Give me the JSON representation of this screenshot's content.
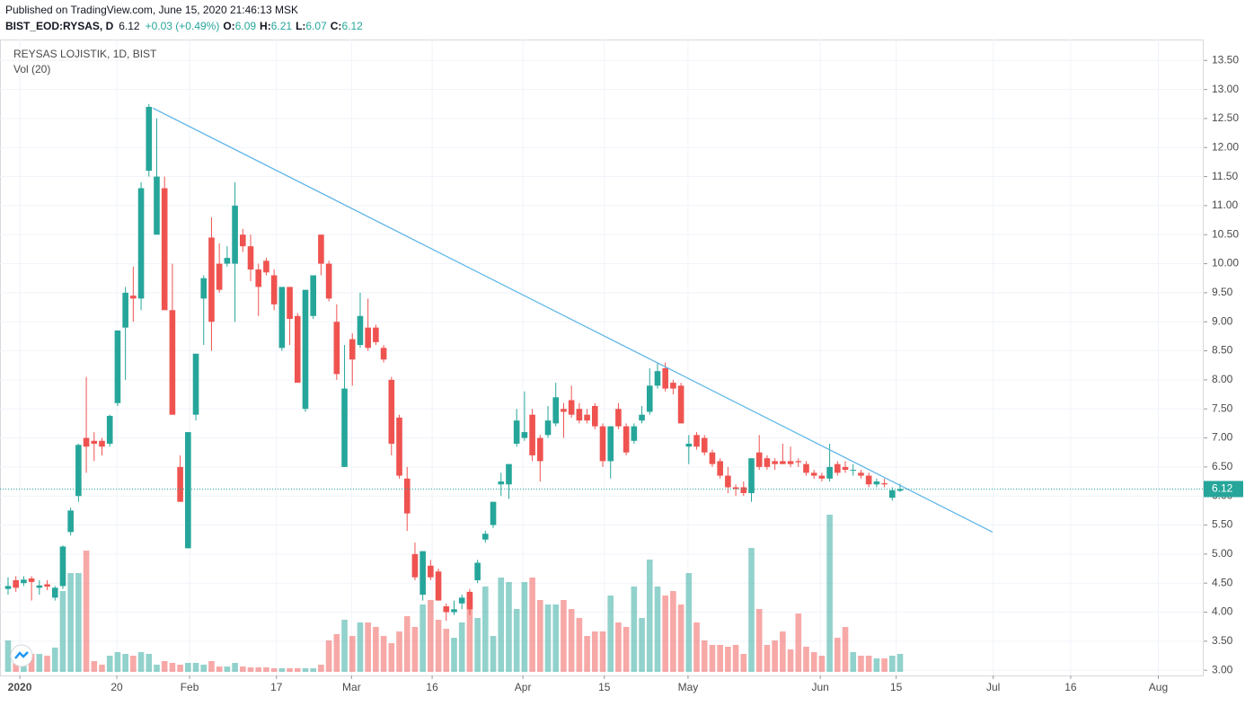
{
  "chart_data": {
    "type": "candlestick",
    "published": "Published on TradingView.com, June 15, 2020 21:46:13 MSK",
    "symbol": "BIST_EOD:RYSAS, D",
    "change": "+0.03 (+0.49%)",
    "ohlc_labels": [
      "O:",
      "H:",
      "L:",
      "C:"
    ],
    "title": "REYSAS LOJISTIK, 1D, BIST",
    "volume_label": "Vol (20)",
    "up_color": "#26a69a",
    "down_color": "#ef5350",
    "trendline_color": "#5eb5e8",
    "grid": true,
    "ylim": [
      2.91,
      13.86
    ],
    "yticks": [
      {
        "value": 3,
        "label": "3.00"
      },
      {
        "value": 3.5,
        "label": "3.50"
      },
      {
        "value": 4,
        "label": "4.00"
      },
      {
        "value": 4.5,
        "label": "4.50"
      },
      {
        "value": 5,
        "label": "5.00"
      },
      {
        "value": 5.5,
        "label": "5.50"
      },
      {
        "value": 6,
        "label": "6.00"
      },
      {
        "value": 6.5,
        "label": "6.50"
      },
      {
        "value": 7,
        "label": "7.00"
      },
      {
        "value": 7.5,
        "label": "7.50"
      },
      {
        "value": 8,
        "label": "8.00"
      },
      {
        "value": 8.5,
        "label": "8.50"
      },
      {
        "value": 9,
        "label": "9.00"
      },
      {
        "value": 9.5,
        "label": "9.50"
      },
      {
        "value": 10,
        "label": "10.00"
      },
      {
        "value": 10.5,
        "label": "10.50"
      },
      {
        "value": 11,
        "label": "11.00"
      },
      {
        "value": 11.5,
        "label": "11.50"
      },
      {
        "value": 12,
        "label": "12.00"
      },
      {
        "value": 12.5,
        "label": "12.50"
      },
      {
        "value": 13,
        "label": "13.00"
      },
      {
        "value": 13.5,
        "label": "13.50"
      }
    ],
    "xlim": [
      -1.03,
      152.8
    ],
    "xticks": [
      {
        "value": 1.5,
        "label": "2020"
      },
      {
        "value": 13.9,
        "label": "20"
      },
      {
        "value": 23.2,
        "label": "Feb"
      },
      {
        "value": 34.3,
        "label": "17"
      },
      {
        "value": 43.9,
        "label": "Mar"
      },
      {
        "value": 54.2,
        "label": "16"
      },
      {
        "value": 65.8,
        "label": "Apr"
      },
      {
        "value": 76.2,
        "label": "15"
      },
      {
        "value": 86.9,
        "label": "May"
      },
      {
        "value": 103.8,
        "label": "Jun"
      },
      {
        "value": 113.5,
        "label": "15"
      },
      {
        "value": 125.9,
        "label": "Jul"
      },
      {
        "value": 135.8,
        "label": "16"
      },
      {
        "value": 147.0,
        "label": "Aug"
      }
    ],
    "trendline": {
      "start": [
        18.5,
        12.68
      ],
      "end": [
        125.8,
        5.38
      ]
    },
    "ohlc": [
      [
        4.4,
        4.6,
        4.3,
        4.45
      ],
      [
        4.55,
        4.62,
        4.35,
        4.42
      ],
      [
        4.5,
        4.62,
        4.45,
        4.56
      ],
      [
        4.58,
        4.62,
        4.2,
        4.52
      ],
      [
        4.42,
        4.55,
        4.3,
        4.46
      ],
      [
        4.48,
        4.55,
        4.38,
        4.44
      ],
      [
        4.25,
        4.45,
        4.2,
        4.42
      ],
      [
        4.45,
        5.15,
        4.4,
        5.13
      ],
      [
        5.38,
        5.8,
        5.32,
        5.75
      ],
      [
        6.0,
        6.9,
        5.9,
        6.88
      ],
      [
        7.0,
        8.05,
        6.4,
        6.85
      ],
      [
        6.95,
        7.1,
        6.6,
        6.9
      ],
      [
        6.95,
        7.0,
        6.7,
        6.85
      ],
      [
        6.9,
        7.4,
        6.85,
        7.38
      ],
      [
        7.6,
        8.85,
        7.55,
        8.85
      ],
      [
        8.9,
        9.6,
        8.0,
        9.5
      ],
      [
        9.45,
        9.95,
        9.0,
        9.4
      ],
      [
        9.4,
        11.4,
        9.2,
        11.3
      ],
      [
        11.6,
        12.75,
        11.5,
        12.7
      ],
      [
        10.5,
        12.5,
        10.5,
        11.5
      ],
      [
        11.3,
        11.5,
        9.2,
        9.2
      ],
      [
        9.2,
        10.0,
        7.4,
        7.4
      ],
      [
        6.5,
        6.7,
        5.9,
        5.9
      ],
      [
        5.1,
        7.1,
        5.1,
        7.1
      ],
      [
        7.4,
        8.45,
        7.3,
        8.45
      ],
      [
        9.4,
        9.8,
        8.6,
        9.75
      ],
      [
        10.45,
        10.8,
        8.5,
        9.0
      ],
      [
        10.0,
        10.35,
        9.5,
        9.55
      ],
      [
        10.0,
        10.3,
        9.95,
        10.1
      ],
      [
        10.0,
        11.4,
        9.0,
        11.0
      ],
      [
        10.5,
        10.6,
        10.2,
        10.3
      ],
      [
        10.3,
        10.5,
        9.7,
        9.9
      ],
      [
        9.9,
        10.0,
        9.1,
        9.6
      ],
      [
        10.05,
        10.1,
        9.8,
        9.85
      ],
      [
        9.8,
        9.9,
        9.2,
        9.3
      ],
      [
        8.55,
        9.6,
        8.5,
        9.6
      ],
      [
        9.6,
        9.6,
        8.6,
        9.05
      ],
      [
        9.1,
        9.15,
        7.95,
        7.95
      ],
      [
        7.5,
        9.55,
        7.45,
        9.55
      ],
      [
        9.1,
        9.8,
        9.05,
        9.8
      ],
      [
        10.5,
        10.5,
        9.8,
        10.0
      ],
      [
        10.0,
        10.05,
        9.35,
        9.4
      ],
      [
        9.0,
        9.3,
        8.0,
        8.1
      ],
      [
        6.5,
        8.6,
        6.5,
        7.85
      ],
      [
        8.7,
        8.8,
        7.9,
        8.35
      ],
      [
        8.6,
        9.5,
        8.55,
        9.1
      ],
      [
        8.9,
        9.4,
        8.5,
        8.55
      ],
      [
        8.9,
        8.95,
        8.6,
        8.65
      ],
      [
        8.55,
        8.6,
        8.3,
        8.35
      ],
      [
        8.0,
        8.05,
        6.7,
        6.9
      ],
      [
        7.35,
        7.4,
        6.3,
        6.35
      ],
      [
        6.3,
        6.5,
        5.4,
        5.7
      ],
      [
        5.0,
        5.2,
        4.55,
        4.6
      ],
      [
        4.3,
        5.05,
        4.2,
        5.05
      ],
      [
        4.8,
        4.9,
        4.55,
        4.6
      ],
      [
        4.7,
        4.75,
        4.2,
        4.2
      ],
      [
        4.1,
        4.15,
        3.85,
        4.0
      ],
      [
        4.0,
        4.2,
        3.95,
        4.05
      ],
      [
        4.15,
        4.3,
        4.05,
        4.25
      ],
      [
        4.35,
        4.4,
        3.95,
        4.05
      ],
      [
        4.55,
        4.9,
        4.5,
        4.85
      ],
      [
        5.25,
        5.4,
        5.2,
        5.35
      ],
      [
        5.5,
        5.9,
        5.45,
        5.9
      ],
      [
        6.2,
        6.4,
        6.0,
        6.25
      ],
      [
        6.2,
        6.55,
        5.95,
        6.55
      ],
      [
        6.9,
        7.5,
        6.85,
        7.3
      ],
      [
        7.0,
        7.8,
        6.95,
        7.1
      ],
      [
        7.4,
        7.5,
        6.6,
        6.7
      ],
      [
        7.0,
        7.05,
        6.25,
        6.6
      ],
      [
        7.05,
        7.55,
        7.0,
        7.3
      ],
      [
        7.25,
        7.95,
        7.2,
        7.7
      ],
      [
        7.5,
        7.6,
        7.0,
        7.45
      ],
      [
        7.65,
        7.9,
        7.35,
        7.4
      ],
      [
        7.5,
        7.6,
        7.25,
        7.3
      ],
      [
        7.4,
        7.5,
        7.25,
        7.3
      ],
      [
        7.55,
        7.6,
        7.15,
        7.2
      ],
      [
        7.2,
        7.25,
        6.5,
        6.6
      ],
      [
        6.6,
        7.2,
        6.3,
        7.2
      ],
      [
        7.5,
        7.6,
        7.15,
        7.2
      ],
      [
        7.2,
        7.25,
        6.7,
        6.75
      ],
      [
        6.95,
        7.25,
        6.9,
        7.2
      ],
      [
        7.3,
        7.55,
        7.25,
        7.4
      ],
      [
        7.45,
        8.2,
        7.4,
        7.9
      ],
      [
        7.9,
        8.3,
        7.85,
        8.15
      ],
      [
        8.2,
        8.3,
        7.8,
        7.85
      ],
      [
        7.95,
        8.0,
        7.75,
        7.85
      ],
      [
        7.9,
        7.95,
        7.25,
        7.25
      ],
      [
        6.85,
        7.05,
        6.55,
        6.9
      ],
      [
        7.05,
        7.1,
        6.8,
        6.85
      ],
      [
        7.0,
        7.05,
        6.7,
        6.75
      ],
      [
        6.75,
        6.8,
        6.5,
        6.55
      ],
      [
        6.6,
        6.65,
        6.3,
        6.35
      ],
      [
        6.35,
        6.5,
        6.05,
        6.15
      ],
      [
        6.15,
        6.2,
        6.0,
        6.12
      ],
      [
        6.15,
        6.25,
        6.0,
        6.05
      ],
      [
        6.05,
        6.65,
        5.9,
        6.65
      ],
      [
        6.75,
        7.05,
        6.45,
        6.5
      ],
      [
        6.65,
        6.7,
        6.45,
        6.5
      ],
      [
        6.6,
        6.65,
        6.45,
        6.55
      ],
      [
        6.6,
        6.9,
        6.55,
        6.55
      ],
      [
        6.6,
        6.85,
        6.5,
        6.55
      ],
      [
        6.6,
        6.65,
        6.5,
        6.58
      ],
      [
        6.55,
        6.6,
        6.35,
        6.4
      ],
      [
        6.4,
        6.45,
        6.3,
        6.35
      ],
      [
        6.35,
        6.4,
        6.25,
        6.3
      ],
      [
        6.3,
        6.9,
        6.25,
        6.5
      ],
      [
        6.55,
        6.6,
        6.35,
        6.4
      ],
      [
        6.5,
        6.6,
        6.4,
        6.45
      ],
      [
        6.45,
        6.55,
        6.35,
        6.45
      ],
      [
        6.4,
        6.45,
        6.3,
        6.35
      ],
      [
        6.35,
        6.4,
        6.15,
        6.2
      ],
      [
        6.2,
        6.3,
        6.15,
        6.25
      ],
      [
        6.22,
        6.3,
        6.15,
        6.2
      ],
      [
        5.97,
        6.15,
        5.92,
        6.1
      ],
      [
        6.09,
        6.21,
        6.07,
        6.12
      ]
    ],
    "volume": [
      35,
      25,
      22,
      20,
      20,
      18,
      27,
      90,
      110,
      110,
      135,
      12,
      8,
      18,
      22,
      20,
      18,
      22,
      20,
      8,
      12,
      10,
      8,
      10,
      10,
      8,
      12,
      6,
      6,
      10,
      6,
      5,
      5,
      5,
      4,
      4,
      4,
      4,
      4,
      4,
      8,
      35,
      42,
      58,
      40,
      55,
      55,
      50,
      40,
      32,
      45,
      62,
      50,
      75,
      80,
      58,
      48,
      38,
      55,
      85,
      60,
      95,
      40,
      105,
      100,
      70,
      100,
      105,
      80,
      75,
      75,
      80,
      70,
      60,
      40,
      45,
      45,
      85,
      55,
      50,
      95,
      60,
      125,
      95,
      85,
      90,
      75,
      110,
      55,
      35,
      30,
      30,
      28,
      30,
      20,
      138,
      70,
      30,
      35,
      45,
      25,
      65,
      28,
      22,
      18,
      175,
      38,
      50,
      22,
      18,
      18,
      15,
      15,
      18,
      20
    ]
  }
}
